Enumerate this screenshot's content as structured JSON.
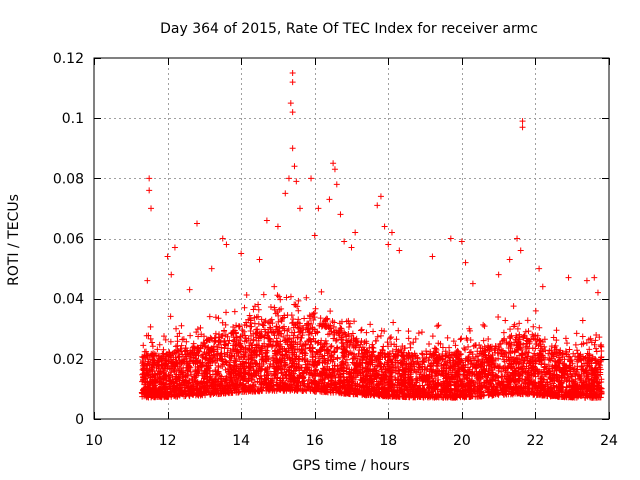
{
  "chart_data": {
    "type": "scatter",
    "title": "Day 364 of 2015, Rate Of TEC Index for receiver armc",
    "xlabel": "GPS time / hours",
    "ylabel": "ROTI / TECUs",
    "xlim": [
      10,
      24
    ],
    "ylim": [
      0,
      0.12
    ],
    "x_ticks": [
      10,
      12,
      14,
      16,
      18,
      20,
      22,
      24
    ],
    "x_tick_labels": [
      "10",
      "12",
      "14",
      "16",
      "18",
      "20",
      "22",
      "24"
    ],
    "y_ticks": [
      0,
      0.02,
      0.04,
      0.06,
      0.08,
      0.1,
      0.12
    ],
    "y_tick_labels": [
      "0",
      "0.02",
      "0.04",
      "0.06",
      "0.08",
      "0.1",
      "0.12"
    ],
    "grid": true,
    "marker": "+",
    "series_color": "#ff0000",
    "data_x_range_hours": [
      11.3,
      23.8
    ],
    "series": [
      {
        "name": "ROTI",
        "points": [
          [
            11.5,
            0.08
          ],
          [
            11.5,
            0.076
          ],
          [
            11.55,
            0.07
          ],
          [
            11.45,
            0.046
          ],
          [
            12.0,
            0.054
          ],
          [
            12.2,
            0.057
          ],
          [
            12.1,
            0.048
          ],
          [
            12.8,
            0.065
          ],
          [
            12.6,
            0.043
          ],
          [
            13.5,
            0.06
          ],
          [
            13.6,
            0.058
          ],
          [
            13.2,
            0.05
          ],
          [
            14.0,
            0.055
          ],
          [
            14.5,
            0.053
          ],
          [
            14.7,
            0.066
          ],
          [
            15.0,
            0.064
          ],
          [
            15.2,
            0.075
          ],
          [
            15.3,
            0.08
          ],
          [
            15.4,
            0.115
          ],
          [
            15.4,
            0.112
          ],
          [
            15.35,
            0.105
          ],
          [
            15.4,
            0.102
          ],
          [
            15.4,
            0.09
          ],
          [
            15.45,
            0.084
          ],
          [
            15.5,
            0.079
          ],
          [
            15.6,
            0.07
          ],
          [
            15.9,
            0.08
          ],
          [
            16.1,
            0.07
          ],
          [
            16.0,
            0.061
          ],
          [
            16.5,
            0.085
          ],
          [
            16.55,
            0.083
          ],
          [
            16.6,
            0.078
          ],
          [
            16.4,
            0.073
          ],
          [
            16.7,
            0.068
          ],
          [
            16.8,
            0.059
          ],
          [
            17.1,
            0.062
          ],
          [
            17.0,
            0.057
          ],
          [
            17.7,
            0.071
          ],
          [
            17.8,
            0.074
          ],
          [
            17.9,
            0.064
          ],
          [
            18.1,
            0.062
          ],
          [
            18.0,
            0.058
          ],
          [
            18.3,
            0.056
          ],
          [
            19.2,
            0.054
          ],
          [
            19.7,
            0.06
          ],
          [
            20.0,
            0.059
          ],
          [
            20.1,
            0.052
          ],
          [
            20.3,
            0.045
          ],
          [
            21.0,
            0.048
          ],
          [
            21.3,
            0.053
          ],
          [
            21.5,
            0.06
          ],
          [
            21.6,
            0.056
          ],
          [
            21.65,
            0.099
          ],
          [
            21.65,
            0.097
          ],
          [
            22.1,
            0.05
          ],
          [
            22.2,
            0.044
          ],
          [
            22.9,
            0.047
          ],
          [
            23.4,
            0.046
          ],
          [
            23.6,
            0.047
          ],
          [
            23.7,
            0.042
          ],
          [
            11.4,
            0.012
          ],
          [
            11.8,
            0.02
          ],
          [
            12.5,
            0.015
          ],
          [
            13.0,
            0.025
          ],
          [
            14.0,
            0.018
          ],
          [
            15.0,
            0.022
          ],
          [
            16.0,
            0.019
          ],
          [
            17.0,
            0.014
          ],
          [
            18.0,
            0.016
          ],
          [
            19.0,
            0.013
          ],
          [
            20.0,
            0.017
          ],
          [
            21.0,
            0.012
          ],
          [
            22.0,
            0.015
          ],
          [
            23.0,
            0.011
          ],
          [
            23.8,
            0.009
          ]
        ]
      }
    ]
  }
}
